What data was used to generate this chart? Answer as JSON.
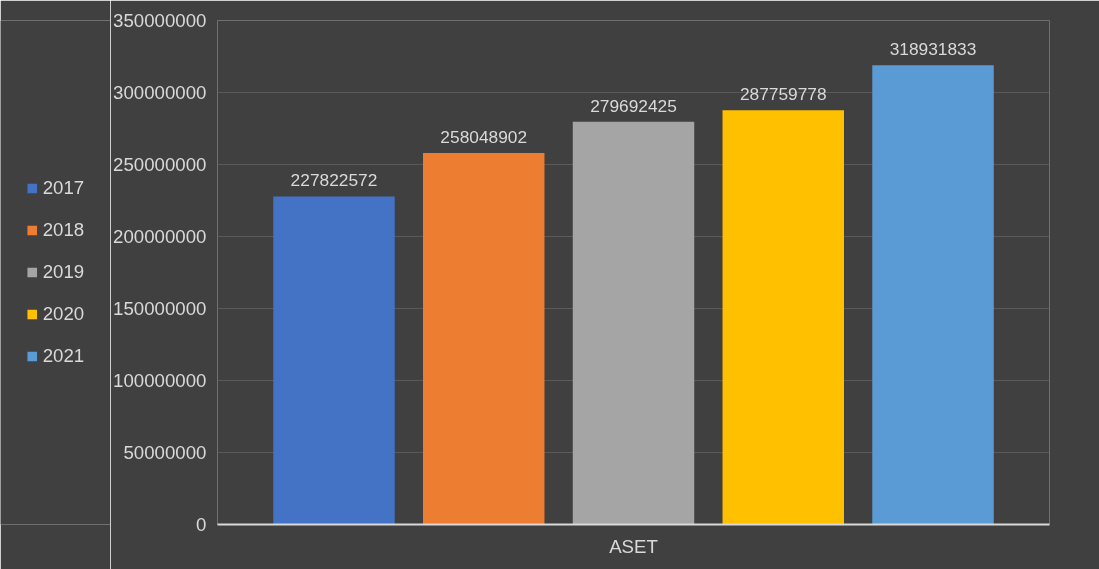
{
  "chart_data": {
    "type": "bar",
    "categories": [
      "ASET"
    ],
    "series": [
      {
        "name": "2017",
        "color": "#4472c4",
        "values": [
          227822572
        ]
      },
      {
        "name": "2018",
        "color": "#ed7d31",
        "values": [
          258048902
        ]
      },
      {
        "name": "2019",
        "color": "#a5a5a5",
        "values": [
          279692425
        ]
      },
      {
        "name": "2020",
        "color": "#ffc000",
        "values": [
          287759778
        ]
      },
      {
        "name": "2021",
        "color": "#5b9bd5",
        "values": [
          318931833
        ]
      }
    ],
    "ylim": [
      0,
      350000000
    ],
    "yticks": [
      0,
      50000000,
      100000000,
      150000000,
      200000000,
      250000000,
      300000000,
      350000000
    ],
    "grid": "y",
    "legend": "left",
    "data_labels": true
  }
}
